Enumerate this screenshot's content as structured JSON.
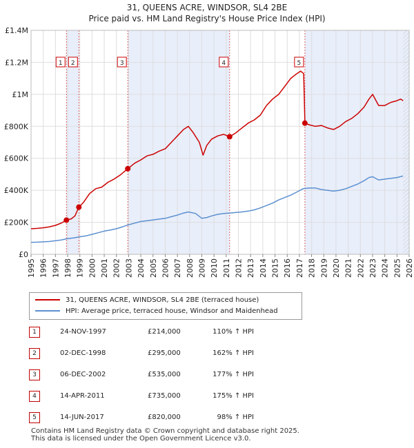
{
  "chart_data": {
    "type": "line",
    "title": "31, QUEENS ACRE, WINDSOR, SL4 2BE",
    "subtitle": "Price paid vs. HM Land Registry's House Price Index (HPI)",
    "xlim": [
      1995,
      2026
    ],
    "ylim": [
      0,
      1400000
    ],
    "x_ticks": [
      "1995",
      "1996",
      "1997",
      "1998",
      "1999",
      "2000",
      "2001",
      "2002",
      "2003",
      "2004",
      "2005",
      "2006",
      "2007",
      "2008",
      "2009",
      "2010",
      "2011",
      "2012",
      "2013",
      "2014",
      "2015",
      "2016",
      "2017",
      "2018",
      "2019",
      "2020",
      "2021",
      "2022",
      "2023",
      "2024",
      "2025",
      "2026"
    ],
    "y_ticks": [
      {
        "value": 0,
        "label": "£0"
      },
      {
        "value": 200000,
        "label": "£200K"
      },
      {
        "value": 400000,
        "label": "£400K"
      },
      {
        "value": 600000,
        "label": "£600K"
      },
      {
        "value": 800000,
        "label": "£800K"
      },
      {
        "value": 1000000,
        "label": "£1M"
      },
      {
        "value": 1200000,
        "label": "£1.2M"
      },
      {
        "value": 1400000,
        "label": "£1.4M"
      }
    ],
    "grid": true,
    "series": [
      {
        "name": "31, QUEENS ACRE, WINDSOR, SL4 2BE (terraced house)",
        "color": "#cc0000",
        "x": [
          1995.0,
          1995.5,
          1996.0,
          1996.5,
          1997.0,
          1997.5,
          1997.9,
          1998.3,
          1998.6,
          1998.92,
          1999.3,
          1999.8,
          2000.3,
          2000.8,
          2001.3,
          2001.8,
          2002.3,
          2002.93,
          2003.5,
          2004.0,
          2004.5,
          2005.0,
          2005.5,
          2006.0,
          2006.5,
          2007.0,
          2007.5,
          2007.9,
          2008.3,
          2008.8,
          2009.1,
          2009.4,
          2009.8,
          2010.3,
          2010.8,
          2011.28,
          2011.8,
          2012.3,
          2012.8,
          2013.3,
          2013.8,
          2014.3,
          2014.8,
          2015.3,
          2015.8,
          2016.3,
          2016.8,
          2017.1,
          2017.35,
          2017.45,
          2017.8,
          2018.3,
          2018.8,
          2019.3,
          2019.8,
          2020.3,
          2020.8,
          2021.3,
          2021.8,
          2022.3,
          2022.7,
          2023.0,
          2023.5,
          2024.0,
          2024.5,
          2025.0,
          2025.3,
          2025.5
        ],
        "y": [
          160000,
          162000,
          166000,
          172000,
          181000,
          196000,
          214000,
          222000,
          240000,
          295000,
          325000,
          380000,
          410000,
          420000,
          450000,
          470000,
          495000,
          535000,
          570000,
          590000,
          615000,
          625000,
          645000,
          660000,
          700000,
          740000,
          780000,
          800000,
          760000,
          700000,
          620000,
          680000,
          720000,
          740000,
          750000,
          735000,
          760000,
          790000,
          820000,
          840000,
          870000,
          930000,
          970000,
          1000000,
          1050000,
          1100000,
          1130000,
          1145000,
          1130000,
          820000,
          810000,
          800000,
          805000,
          790000,
          780000,
          800000,
          830000,
          850000,
          880000,
          920000,
          970000,
          1000000,
          930000,
          930000,
          950000,
          960000,
          970000,
          960000
        ]
      },
      {
        "name": "HPI: Average price, terraced house, Windsor and Maidenhead",
        "color": "#5b8fd0",
        "x": [
          1995.0,
          1995.5,
          1996.0,
          1996.5,
          1997.0,
          1997.5,
          1997.9,
          1998.5,
          1999.0,
          1999.5,
          2000.0,
          2000.5,
          2001.0,
          2001.5,
          2002.0,
          2002.5,
          2003.0,
          2003.5,
          2004.0,
          2004.5,
          2005.0,
          2005.5,
          2006.0,
          2006.5,
          2007.0,
          2007.5,
          2007.9,
          2008.5,
          2009.0,
          2009.4,
          2009.8,
          2010.3,
          2010.8,
          2011.3,
          2011.8,
          2012.3,
          2012.8,
          2013.3,
          2013.8,
          2014.3,
          2014.8,
          2015.3,
          2015.8,
          2016.3,
          2016.8,
          2017.3,
          2017.8,
          2018.3,
          2018.8,
          2019.3,
          2019.8,
          2020.3,
          2020.8,
          2021.3,
          2021.8,
          2022.3,
          2022.7,
          2023.0,
          2023.5,
          2024.0,
          2024.5,
          2025.0,
          2025.5
        ],
        "y": [
          75000,
          76000,
          78000,
          80000,
          85000,
          90000,
          97000,
          103000,
          110000,
          115000,
          125000,
          135000,
          145000,
          152000,
          160000,
          172000,
          185000,
          195000,
          205000,
          210000,
          215000,
          220000,
          225000,
          235000,
          245000,
          258000,
          265000,
          255000,
          225000,
          230000,
          240000,
          250000,
          255000,
          258000,
          262000,
          265000,
          270000,
          278000,
          290000,
          305000,
          320000,
          340000,
          355000,
          370000,
          390000,
          410000,
          415000,
          415000,
          405000,
          400000,
          395000,
          400000,
          410000,
          425000,
          440000,
          460000,
          480000,
          485000,
          465000,
          470000,
          475000,
          480000,
          490000
        ]
      }
    ],
    "sales": [
      {
        "n": "1",
        "x": 1997.9,
        "y": 214000
      },
      {
        "n": "2",
        "x": 1998.92,
        "y": 295000
      },
      {
        "n": "3",
        "x": 2002.93,
        "y": 535000
      },
      {
        "n": "4",
        "x": 2011.28,
        "y": 735000
      },
      {
        "n": "5",
        "x": 2017.45,
        "y": 820000
      }
    ]
  },
  "legend": {
    "property_label": "31, QUEENS ACRE, WINDSOR, SL4 2BE (terraced house)",
    "hpi_label": "HPI: Average price, terraced house, Windsor and Maidenhead"
  },
  "sales_table": [
    {
      "n": "1",
      "date": "24-NOV-1997",
      "price": "£214,000",
      "hpi": "110% ↑ HPI"
    },
    {
      "n": "2",
      "date": "02-DEC-1998",
      "price": "£295,000",
      "hpi": "162% ↑ HPI"
    },
    {
      "n": "3",
      "date": "06-DEC-2002",
      "price": "£535,000",
      "hpi": "177% ↑ HPI"
    },
    {
      "n": "4",
      "date": "14-APR-2011",
      "price": "£735,000",
      "hpi": "175% ↑ HPI"
    },
    {
      "n": "5",
      "date": "14-JUN-2017",
      "price": "£820,000",
      "hpi": "98% ↑ HPI"
    }
  ],
  "footer": {
    "line1": "Contains HM Land Registry data © Crown copyright and database right 2025.",
    "line2": "This data is licensed under the Open Government Licence v3.0."
  },
  "colors": {
    "property": "#cc0000",
    "hpi": "#5b8fd0",
    "shade": "#e8eefa",
    "grid": "#dddddd"
  }
}
